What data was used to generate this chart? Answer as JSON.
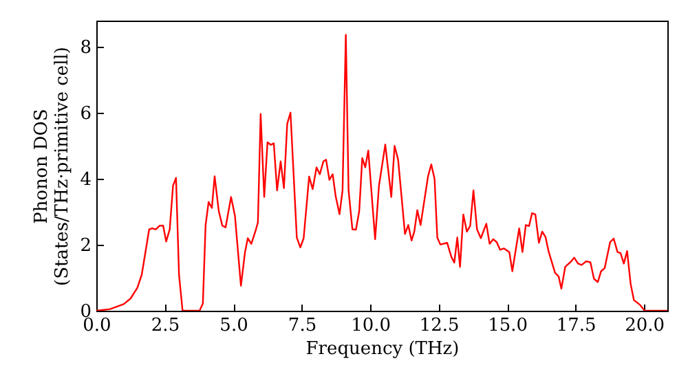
{
  "chart_data": {
    "type": "line",
    "xlabel": "Frequency (THz)",
    "ylabel": "Phonon DOS\n(States/THz·primitive cell)",
    "x": [
      0,
      0.5,
      1.0,
      1.25,
      1.5,
      1.66,
      1.93,
      2.04,
      2.17,
      2.31,
      2.44,
      2.55,
      2.68,
      2.8,
      2.91,
      3.02,
      3.15,
      3.77,
      3.89,
      3.99,
      4.1,
      4.22,
      4.32,
      4.47,
      4.6,
      4.72,
      4.92,
      5.06,
      5.28,
      5.43,
      5.53,
      5.66,
      5.83,
      5.9,
      6.0,
      6.13,
      6.25,
      6.37,
      6.48,
      6.6,
      6.73,
      6.85,
      6.97,
      7.04,
      7.09,
      7.32,
      7.45,
      7.57,
      7.77,
      7.9,
      8.04,
      8.16,
      8.29,
      8.39,
      8.51,
      8.63,
      8.74,
      8.88,
      8.99,
      9.11,
      9.21,
      9.35,
      9.48,
      9.6,
      9.71,
      9.82,
      9.93,
      10.18,
      10.32,
      10.55,
      10.77,
      10.89,
      11.02,
      11.27,
      11.39,
      11.51,
      11.61,
      11.72,
      11.84,
      12.11,
      12.23,
      12.35,
      12.45,
      12.56,
      12.81,
      12.96,
      13.07,
      13.18,
      13.28,
      13.4,
      13.53,
      13.65,
      13.77,
      13.9,
      14.04,
      14.24,
      14.36,
      14.49,
      14.62,
      14.74,
      14.88,
      15.08,
      15.19,
      15.44,
      15.56,
      15.68,
      15.8,
      15.91,
      16.03,
      16.16,
      16.28,
      16.4,
      16.52,
      16.75,
      16.88,
      16.98,
      17.12,
      17.34,
      17.45,
      17.59,
      17.72,
      17.89,
      18.04,
      18.17,
      18.31,
      18.43,
      18.56,
      18.76,
      18.89,
      19.03,
      19.14,
      19.26,
      19.38,
      19.51,
      19.63,
      19.85,
      20.02,
      20.85
    ],
    "series": [
      {
        "color": "#ff0000",
        "values": [
          0,
          0.05,
          0.2,
          0.37,
          0.7,
          1.1,
          2.47,
          2.5,
          2.47,
          2.58,
          2.58,
          2.1,
          2.47,
          3.79,
          4.03,
          1.08,
          0,
          0,
          0.22,
          2.6,
          3.3,
          3.12,
          4.08,
          3.03,
          2.58,
          2.53,
          3.45,
          2.89,
          0.76,
          1.78,
          2.2,
          2.03,
          2.47,
          2.68,
          5.97,
          3.45,
          5.11,
          5.03,
          5.08,
          3.65,
          4.53,
          3.72,
          5.67,
          5.87,
          6.01,
          2.22,
          1.92,
          2.2,
          4.07,
          3.69,
          4.35,
          4.14,
          4.53,
          4.58,
          3.97,
          4.14,
          3.47,
          2.93,
          3.65,
          8.37,
          3.65,
          2.47,
          2.46,
          3.03,
          4.63,
          4.35,
          4.86,
          2.17,
          3.79,
          5.04,
          3.45,
          5.0,
          4.58,
          2.33,
          2.6,
          2.13,
          2.4,
          3.05,
          2.6,
          4.07,
          4.44,
          4.0,
          2.22,
          2.01,
          2.06,
          1.64,
          1.46,
          2.22,
          1.33,
          2.92,
          2.4,
          2.57,
          3.65,
          2.47,
          2.2,
          2.64,
          2.03,
          2.17,
          2.08,
          1.85,
          1.89,
          1.78,
          1.2,
          2.5,
          1.78,
          2.6,
          2.57,
          2.96,
          2.92,
          2.06,
          2.4,
          2.24,
          1.78,
          1.15,
          1.04,
          0.67,
          1.33,
          1.5,
          1.61,
          1.43,
          1.39,
          1.5,
          1.47,
          0.97,
          0.87,
          1.2,
          1.29,
          2.08,
          2.19,
          1.78,
          1.75,
          1.43,
          1.81,
          0.81,
          0.32,
          0.18,
          0,
          0
        ]
      }
    ],
    "xlim": [
      0,
      20.85
    ],
    "ylim": [
      0,
      8.8
    ],
    "xticks": [
      {
        "value": 0,
        "label": "0.0"
      },
      {
        "value": 2.5,
        "label": "2.5"
      },
      {
        "value": 5,
        "label": "5.0"
      },
      {
        "value": 7.5,
        "label": "7.5"
      },
      {
        "value": 10,
        "label": "10.0"
      },
      {
        "value": 12.5,
        "label": "12.5"
      },
      {
        "value": 15,
        "label": "15.0"
      },
      {
        "value": 17.5,
        "label": "17.5"
      },
      {
        "value": 20,
        "label": "20.0"
      }
    ],
    "yticks": [
      0,
      2,
      4,
      6,
      8
    ],
    "grid": false,
    "marker": "none",
    "line_style": "solid"
  }
}
